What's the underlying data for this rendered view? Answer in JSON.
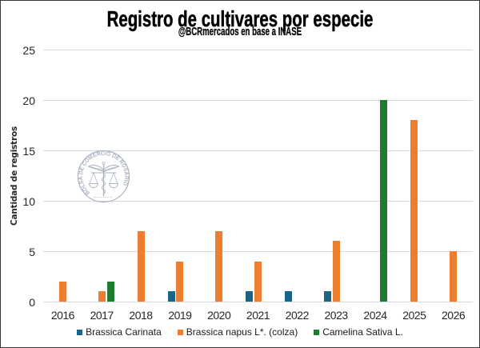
{
  "chart_data": {
    "type": "bar",
    "title": "Registro de cultivares por especie",
    "subtitle": "@BCRmercados en base a INASE",
    "ylabel": "Cantidad de registros",
    "xlabel": "",
    "categories": [
      "2016",
      "2017",
      "2018",
      "2019",
      "2020",
      "2021",
      "2022",
      "2023",
      "2024",
      "2025",
      "2026"
    ],
    "series": [
      {
        "name": "Brassica Carinata",
        "color": "#1a6487",
        "values": [
          0,
          0,
          0,
          1,
          0,
          1,
          1,
          1,
          0,
          0,
          0
        ]
      },
      {
        "name": "Brassica napus L*. (colza)",
        "color": "#ed7d31",
        "values": [
          2,
          1,
          7,
          4,
          7,
          4,
          0,
          6,
          0,
          18,
          5
        ]
      },
      {
        "name": "Camelina Sativa L.",
        "color": "#1e7b2f",
        "values": [
          0,
          2,
          0,
          0,
          0,
          0,
          0,
          0,
          20,
          0,
          0
        ]
      }
    ],
    "ylim": [
      0,
      25
    ],
    "ytick_step": 5,
    "grid": true,
    "legend_position": "bottom",
    "gridline_color": "#d9d9d9",
    "text_color": "#262626"
  },
  "watermark": {
    "text": "BOLSA DE COMERCIO DE ROSARIO",
    "color": "#a9b2c4"
  }
}
